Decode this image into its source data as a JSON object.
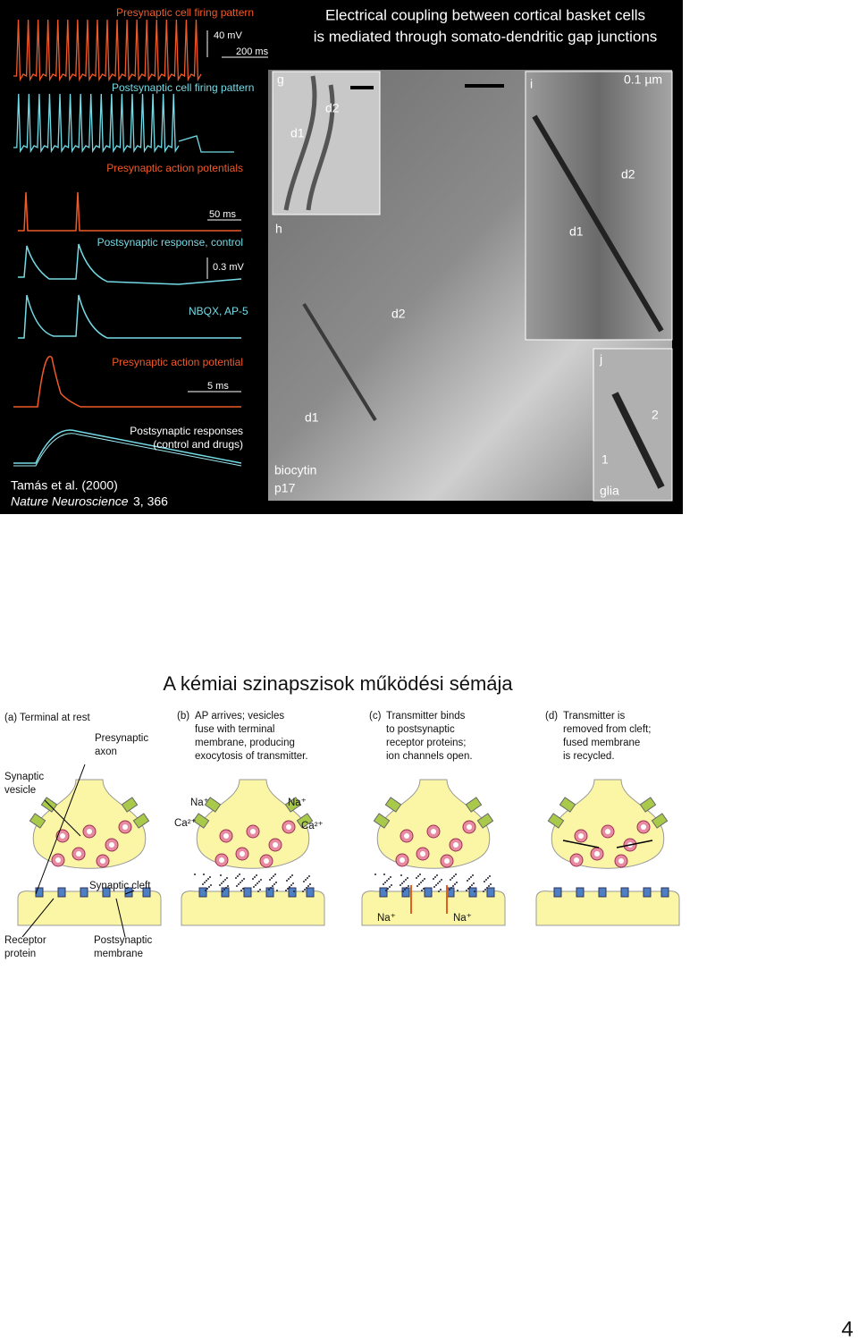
{
  "figure1": {
    "title": [
      "Electrical coupling between cortical basket cells",
      "is mediated through somato-dendritic gap junctions"
    ],
    "trace_labels": {
      "pre_firing": "Presynaptic cell firing pattern",
      "scale_mv": "40 mV",
      "scale_ms": "200 ms",
      "post_firing": "Postsynaptic cell firing pattern",
      "pre_aps": "Presynaptic action potentials",
      "scale_50ms": "50 ms",
      "post_control": "Postsynaptic response, control",
      "scale_03mv": "0.3 mV",
      "nbqx": "NBQX, AP-5",
      "pre_ap": "Presynaptic action potential",
      "scale_5ms": "5 ms",
      "post_responses": [
        "Postsynaptic responses",
        "(control and drugs)"
      ]
    },
    "citation": {
      "authors": "Tamás et al. (2000)",
      "journal": "Nature Neuroscience",
      "volume": "3, 366"
    },
    "micrograph_labels": {
      "g": "g",
      "g_d1": "d1",
      "g_d2": "d2",
      "h": "h",
      "h_d2": "d2",
      "h_d1": "d1",
      "biocytin": "biocytin",
      "p17": "p17",
      "i": "i",
      "scale": "0.1 µm",
      "i_d2": "d2",
      "i_d1": "d1",
      "j": "j",
      "j_2": "2",
      "j_1": "1",
      "glia": "glia"
    }
  },
  "figure2": {
    "title": "A kémiai szinapszisok működési sémája",
    "panel_a": {
      "caption": "(a) Terminal at rest",
      "presynaptic": [
        "Presynaptic",
        "axon"
      ],
      "vesicle": [
        "Synaptic",
        "vesicle"
      ],
      "cleft": "Synaptic cleft",
      "receptor": [
        "Receptor",
        "protein"
      ],
      "postsynaptic": [
        "Postsynaptic",
        "membrane"
      ]
    },
    "panel_b": {
      "letter": "(b)",
      "caption": [
        "AP arrives; vesicles",
        "fuse with terminal",
        "membrane, producing",
        "exocytosis of transmitter."
      ],
      "ions": [
        "Na⁺",
        "Na⁺",
        "Ca²⁺",
        "Ca²⁺"
      ]
    },
    "panel_c": {
      "letter": "(c)",
      "caption": [
        "Transmitter binds",
        "to postsynaptic",
        "receptor proteins;",
        "ion channels open."
      ],
      "ions": [
        "Na⁺",
        "Na⁺"
      ]
    },
    "panel_d": {
      "letter": "(d)",
      "caption": [
        "Transmitter is",
        "removed from cleft;",
        "fused membrane",
        "is recycled."
      ]
    }
  },
  "page_number": "4"
}
